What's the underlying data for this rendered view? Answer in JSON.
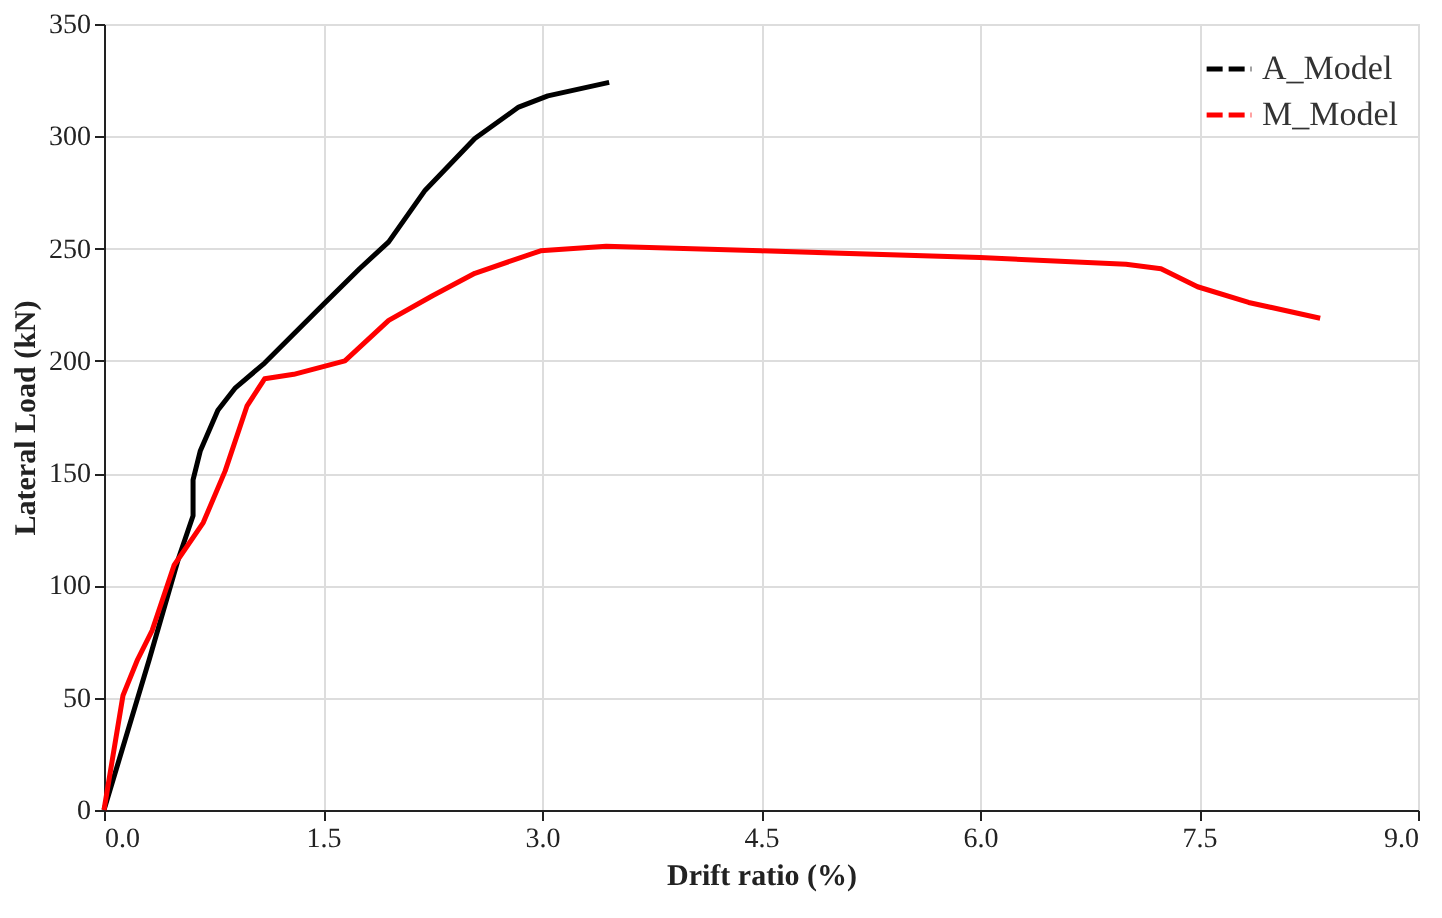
{
  "chart_data": {
    "type": "line",
    "xlabel": "Drift ratio (%)",
    "ylabel": "Lateral Load (kN)",
    "xlim": [
      0,
      9
    ],
    "xticks": [
      {
        "value": 0,
        "label": "0.0"
      },
      {
        "value": 1.5,
        "label": "1.5"
      },
      {
        "value": 3,
        "label": "3.0"
      },
      {
        "value": 4.5,
        "label": "4.5"
      },
      {
        "value": 6,
        "label": "6.0"
      },
      {
        "value": 7.5,
        "label": "7.5"
      },
      {
        "value": 9,
        "label": "9.0"
      }
    ],
    "ylim": [
      0,
      350
    ],
    "yticks": [
      0,
      50,
      100,
      150,
      200,
      250,
      300,
      350
    ],
    "grid": true,
    "legend": "top right",
    "line_style": "solid",
    "marker": "none",
    "series": [
      {
        "name": "A_Model",
        "color": "#000000",
        "x": [
          0,
          0.31,
          0.51,
          0.61,
          0.61,
          0.66,
          0.78,
          0.9,
          1.1,
          1.5,
          1.75,
          1.95,
          2.2,
          2.54,
          2.84,
          3.04,
          3.46
        ],
        "values": [
          0,
          67,
          112,
          131,
          147,
          160,
          178,
          188,
          199,
          225,
          241,
          253,
          276,
          299,
          313,
          318,
          324
        ]
      },
      {
        "name": "M_Model",
        "color": "#ff0000",
        "x": [
          0,
          0.13,
          0.23,
          0.33,
          0.48,
          0.68,
          0.83,
          0.98,
          1.1,
          1.3,
          1.65,
          1.95,
          2.25,
          2.54,
          2.99,
          3.44,
          4.5,
          6.0,
          7.0,
          7.24,
          7.49,
          7.84,
          8.33
        ],
        "values": [
          0,
          51,
          67,
          80,
          109,
          128,
          151,
          180,
          192,
          194,
          200,
          218,
          229,
          239,
          249,
          251,
          249,
          246,
          243,
          241,
          233,
          226,
          219
        ]
      }
    ]
  }
}
